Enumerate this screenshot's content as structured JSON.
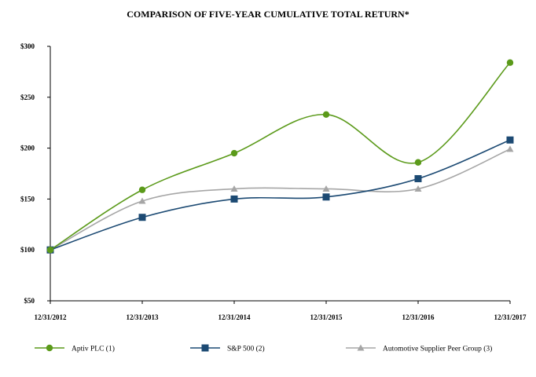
{
  "chart_data": {
    "type": "line",
    "title": "COMPARISON OF FIVE-YEAR CUMULATIVE TOTAL RETURN*",
    "xlabel": "",
    "ylabel": "",
    "categories": [
      "12/31/2012",
      "12/31/2013",
      "12/31/2014",
      "12/31/2015",
      "12/31/2016",
      "12/31/2017"
    ],
    "ylim": [
      50,
      300
    ],
    "yticks": [
      50,
      100,
      150,
      200,
      250,
      300
    ],
    "ytick_labels": [
      "$50",
      "$100",
      "$150",
      "$200",
      "$250",
      "$300"
    ],
    "grid": false,
    "legend_position": "bottom",
    "series": [
      {
        "name": "Aptiv PLC (1)",
        "color": "#5b9a1a",
        "marker": "circle",
        "values": [
          100,
          159,
          195,
          233,
          186,
          284
        ]
      },
      {
        "name": "S&P 500 (2)",
        "color": "#1c4a73",
        "marker": "square",
        "values": [
          100,
          132,
          150,
          152,
          170,
          208
        ]
      },
      {
        "name": "Automotive Supplier Peer Group (3)",
        "color": "#a6a6a6",
        "marker": "triangle",
        "values": [
          100,
          148,
          160,
          160,
          160,
          199
        ]
      }
    ]
  }
}
